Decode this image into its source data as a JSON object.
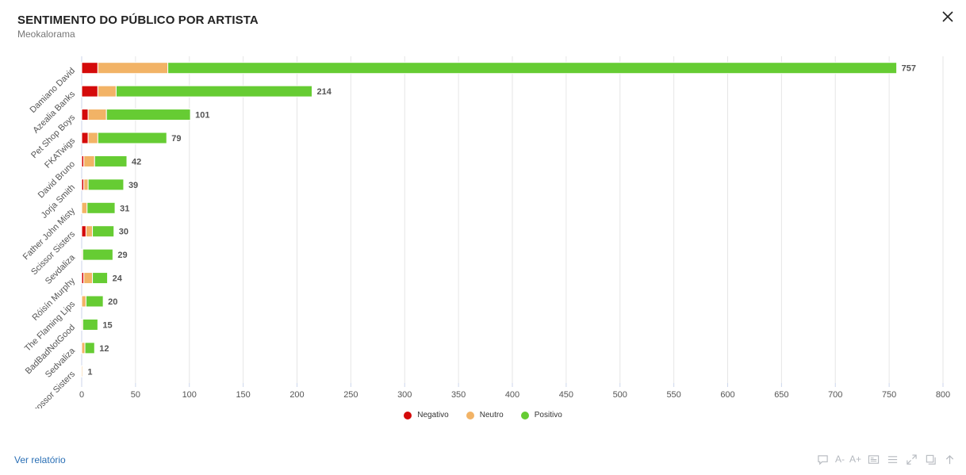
{
  "header": {
    "title": "SENTIMENTO DO PÚBLICO POR ARTISTA",
    "subtitle": "Meokalorama"
  },
  "footer": {
    "report_link": "Ver relatório",
    "font_decrease": "A-",
    "font_increase": "A+"
  },
  "legend": [
    {
      "name": "Negativo",
      "color": "#d40a0a"
    },
    {
      "name": "Neutro",
      "color": "#f2b366"
    },
    {
      "name": "Positivo",
      "color": "#66cc33"
    }
  ],
  "chart_data": {
    "type": "bar",
    "orientation": "horizontal",
    "stacked": true,
    "categories": [
      "Damiano David",
      "Azealia Banks",
      "Pet Shop Boys",
      "FKATwigs",
      "David Bruno",
      "Jorja Smith",
      "Father John Misty",
      "Scissor Sisters",
      "Sevdaliza",
      "Róisín Murphy",
      "The Flaming Lips",
      "BadBadNotGood",
      "Sedvaliza",
      "Sicossor Sisters"
    ],
    "series": [
      {
        "name": "Negativo",
        "color": "#d40a0a",
        "values": [
          15,
          15,
          6,
          6,
          2,
          2,
          0,
          4,
          0,
          2,
          0,
          0,
          0,
          0
        ]
      },
      {
        "name": "Neutro",
        "color": "#f2b366",
        "values": [
          65,
          17,
          17,
          9,
          10,
          4,
          5,
          6,
          1,
          8,
          4,
          1,
          3,
          1
        ]
      },
      {
        "name": "Positivo",
        "color": "#66cc33",
        "values": [
          677,
          182,
          78,
          64,
          30,
          33,
          26,
          20,
          28,
          14,
          16,
          14,
          9,
          0
        ]
      }
    ],
    "totals": [
      757,
      214,
      101,
      79,
      42,
      39,
      31,
      30,
      29,
      24,
      20,
      15,
      12,
      1
    ],
    "xticks": [
      0,
      50,
      100,
      150,
      200,
      250,
      300,
      350,
      400,
      450,
      500,
      550,
      600,
      650,
      700,
      750,
      800
    ],
    "xlim": [
      0,
      800
    ],
    "grid": true,
    "legend_position": "bottom-center"
  }
}
